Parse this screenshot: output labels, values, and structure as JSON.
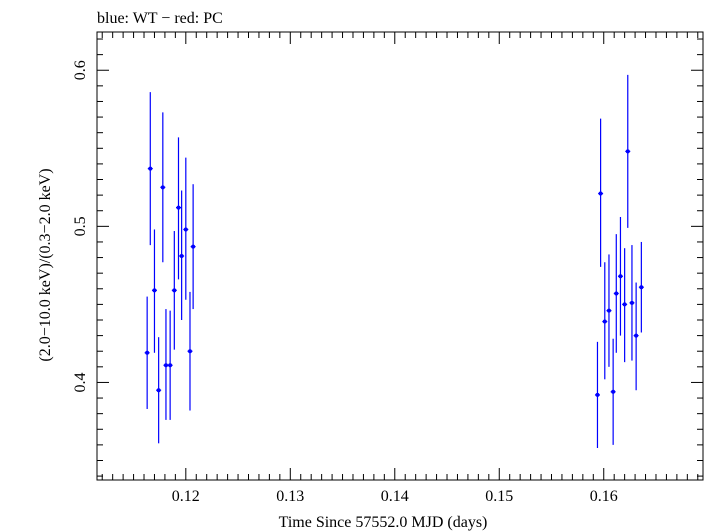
{
  "chart_data": {
    "type": "scatter",
    "title": "blue: WT − red: PC",
    "xlabel": "Time Since 57552.0 MJD (days)",
    "ylabel": "(2.0−10.0 keV)/(0.3−2.0 keV)",
    "xlim": [
      0.1115,
      0.1695
    ],
    "ylim": [
      0.3375,
      0.6245
    ],
    "xticks": [
      0.12,
      0.13,
      0.14,
      0.15,
      0.16
    ],
    "xtick_labels": [
      "0.12",
      "0.13",
      "0.14",
      "0.15",
      "0.16"
    ],
    "yticks": [
      0.4,
      0.5,
      0.6
    ],
    "ytick_labels": [
      "0.4",
      "0.5",
      "0.6"
    ],
    "grid": false,
    "series": [
      {
        "color": "#0000ff",
        "points": [
          {
            "x": 0.1163,
            "y": 0.419,
            "ylo": 0.383,
            "yhi": 0.455
          },
          {
            "x": 0.1166,
            "y": 0.537,
            "ylo": 0.488,
            "yhi": 0.586
          },
          {
            "x": 0.117,
            "y": 0.459,
            "ylo": 0.419,
            "yhi": 0.498
          },
          {
            "x": 0.1174,
            "y": 0.395,
            "ylo": 0.361,
            "yhi": 0.429
          },
          {
            "x": 0.1178,
            "y": 0.525,
            "ylo": 0.477,
            "yhi": 0.573
          },
          {
            "x": 0.1181,
            "y": 0.411,
            "ylo": 0.376,
            "yhi": 0.447
          },
          {
            "x": 0.1185,
            "y": 0.411,
            "ylo": 0.376,
            "yhi": 0.446
          },
          {
            "x": 0.1189,
            "y": 0.459,
            "ylo": 0.421,
            "yhi": 0.497
          },
          {
            "x": 0.1193,
            "y": 0.512,
            "ylo": 0.466,
            "yhi": 0.557
          },
          {
            "x": 0.1196,
            "y": 0.481,
            "ylo": 0.44,
            "yhi": 0.523
          },
          {
            "x": 0.12,
            "y": 0.498,
            "ylo": 0.453,
            "yhi": 0.544
          },
          {
            "x": 0.1204,
            "y": 0.42,
            "ylo": 0.382,
            "yhi": 0.458
          },
          {
            "x": 0.1207,
            "y": 0.487,
            "ylo": 0.447,
            "yhi": 0.527
          },
          {
            "x": 0.1594,
            "y": 0.392,
            "ylo": 0.358,
            "yhi": 0.426
          },
          {
            "x": 0.1597,
            "y": 0.521,
            "ylo": 0.474,
            "yhi": 0.569
          },
          {
            "x": 0.1601,
            "y": 0.439,
            "ylo": 0.402,
            "yhi": 0.477
          },
          {
            "x": 0.1605,
            "y": 0.446,
            "ylo": 0.41,
            "yhi": 0.482
          },
          {
            "x": 0.1609,
            "y": 0.394,
            "ylo": 0.36,
            "yhi": 0.428
          },
          {
            "x": 0.1612,
            "y": 0.457,
            "ylo": 0.419,
            "yhi": 0.495
          },
          {
            "x": 0.1616,
            "y": 0.468,
            "ylo": 0.43,
            "yhi": 0.506
          },
          {
            "x": 0.162,
            "y": 0.45,
            "ylo": 0.413,
            "yhi": 0.486
          },
          {
            "x": 0.1623,
            "y": 0.548,
            "ylo": 0.499,
            "yhi": 0.597
          },
          {
            "x": 0.1627,
            "y": 0.451,
            "ylo": 0.414,
            "yhi": 0.488
          },
          {
            "x": 0.1631,
            "y": 0.43,
            "ylo": 0.395,
            "yhi": 0.464
          },
          {
            "x": 0.1636,
            "y": 0.461,
            "ylo": 0.432,
            "yhi": 0.49
          }
        ]
      }
    ]
  }
}
